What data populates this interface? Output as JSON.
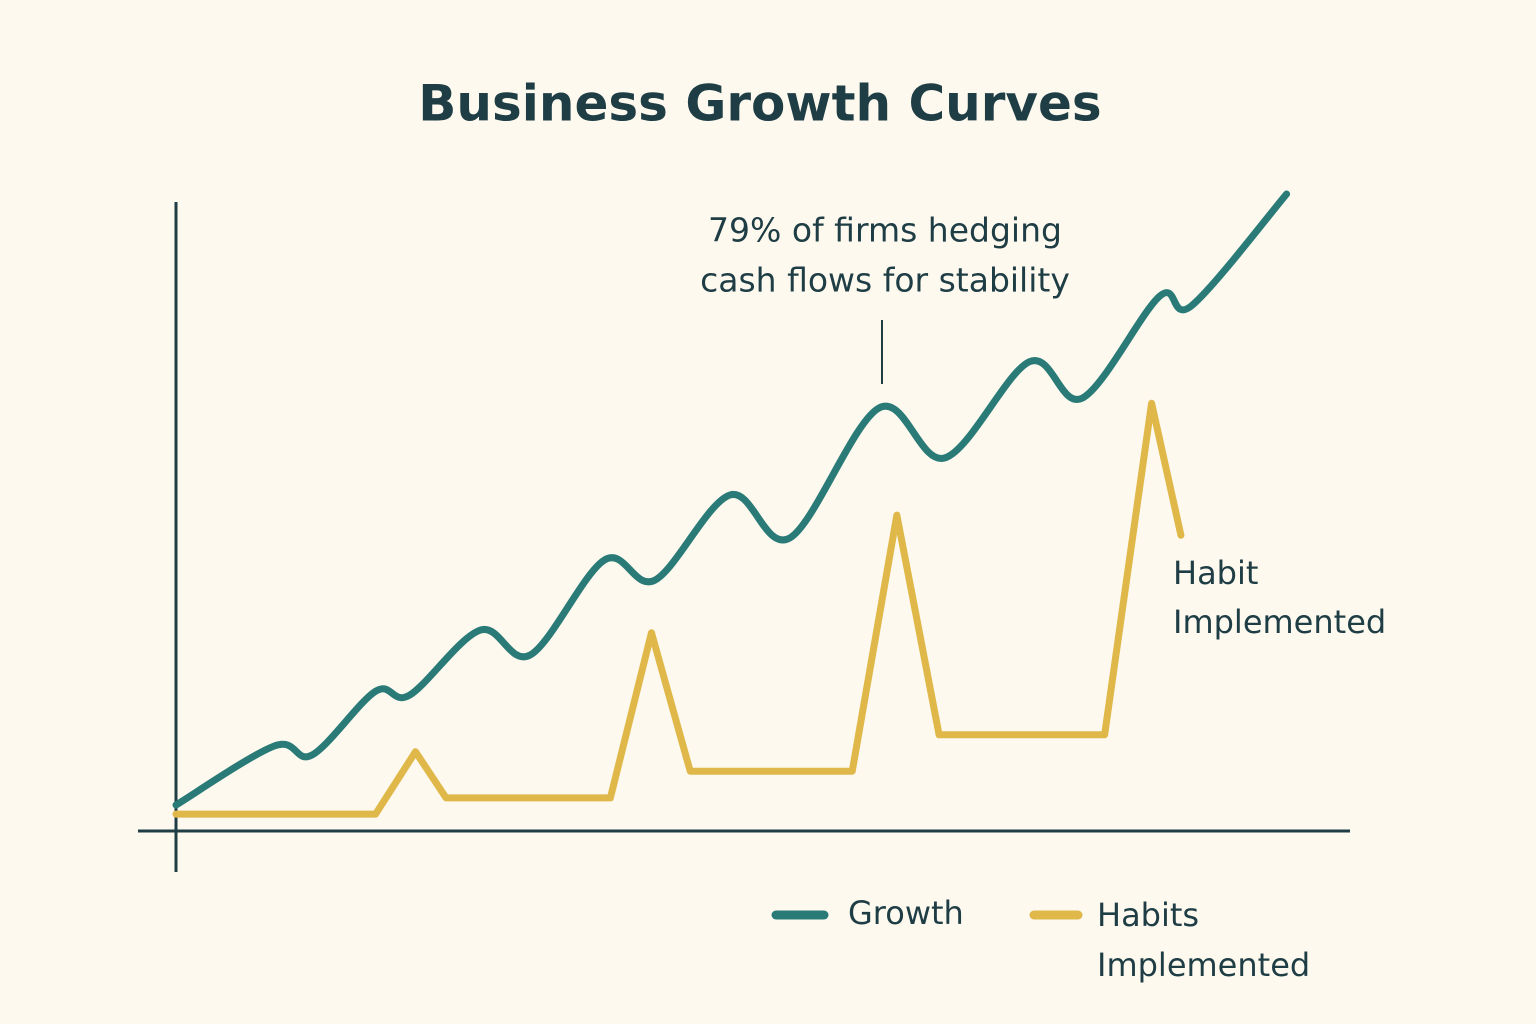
{
  "chart_data": {
    "type": "line",
    "title": "Business Growth Curves",
    "xlim": [
      0,
      100
    ],
    "ylim": [
      0,
      100
    ],
    "series": [
      {
        "name": "Growth",
        "color": "#2a7b78",
        "smooth": true,
        "x": [
          0,
          8.4,
          11.6,
          17.0,
          19.9,
          25.9,
          30.2,
          36.5,
          40.8,
          47.2,
          52.3,
          59.9,
          65.5,
          72.7,
          77.2,
          83.8,
          86.5,
          94.6
        ],
        "values": [
          4.0,
          13.1,
          11.7,
          21.5,
          20.9,
          30.9,
          27.1,
          41.7,
          38.6,
          51.7,
          45.1,
          65.1,
          57.4,
          72.2,
          66.6,
          82.3,
          80.8,
          98.0
        ]
      },
      {
        "name": "Habits Implemented",
        "color": "#e0b84a",
        "smooth": false,
        "x": [
          0,
          17.0,
          20.4,
          23.0,
          37.0,
          40.5,
          43.8,
          57.6,
          61.4,
          65.0,
          79.1,
          83.1,
          85.6
        ],
        "values": [
          2.6,
          2.6,
          12.2,
          5.1,
          5.1,
          30.5,
          9.2,
          9.2,
          48.6,
          14.8,
          14.8,
          65.8,
          45.5
        ]
      }
    ],
    "annotations": [
      {
        "lines": [
          "79% of firms hedging",
          "cash flows for stability"
        ]
      },
      {
        "lines": [
          "Habit",
          "Implemented"
        ]
      }
    ]
  }
}
